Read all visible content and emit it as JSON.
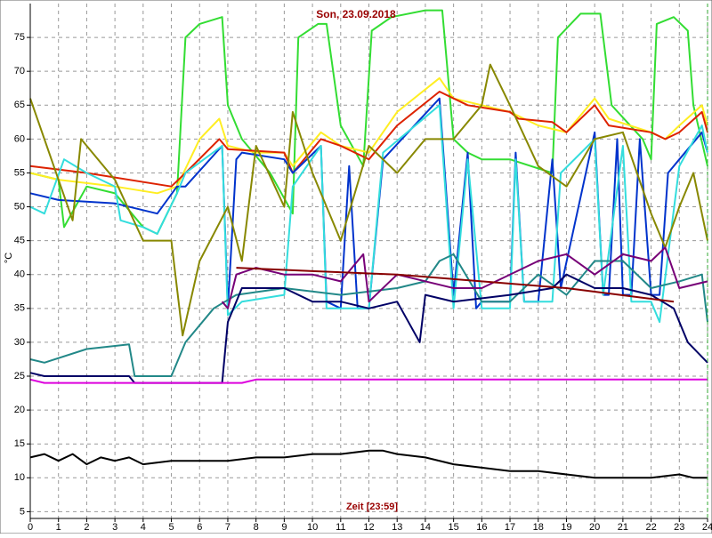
{
  "chart_data": {
    "type": "line",
    "title": "Son, 23.09.2018",
    "x_label": "Zeit [23:59]",
    "y_label": "°C",
    "xlim": [
      0,
      24
    ],
    "xticks": [
      0,
      1,
      2,
      3,
      4,
      5,
      6,
      7,
      8,
      9,
      10,
      11,
      12,
      13,
      14,
      15,
      16,
      17,
      18,
      19,
      20,
      21,
      22,
      23,
      24
    ],
    "ylim": [
      4,
      80
    ],
    "yticks": [
      5,
      10,
      15,
      20,
      25,
      30,
      35,
      40,
      45,
      50,
      55,
      60,
      65,
      70,
      75
    ],
    "grid": true,
    "series": [
      {
        "color": "#33dd33",
        "x": [
          0,
          1,
          1.2,
          2,
          3,
          4,
          4.5,
          5.2,
          5.5,
          6,
          6.8,
          7,
          7.5,
          8.5,
          9.3,
          9.5,
          10.2,
          10.5,
          11,
          11.8,
          12.1,
          12.8,
          14,
          14.6,
          15,
          15.5,
          16,
          17,
          18.5,
          18.7,
          19.5,
          20.2,
          20.6,
          21.7,
          22,
          22.2,
          22.8,
          23.3,
          23.5,
          24
        ],
        "values": [
          55,
          54,
          47,
          53,
          52,
          47,
          46,
          52,
          75,
          77,
          78,
          65,
          60,
          55,
          49,
          75,
          77,
          77,
          62,
          56,
          76,
          78,
          79,
          79,
          60,
          58,
          57,
          57,
          55,
          75,
          78.5,
          78.5,
          65,
          60,
          57,
          77,
          78,
          76,
          65,
          56
        ]
      },
      {
        "color": "#ffee22",
        "x": [
          0,
          1,
          2,
          3,
          4.5,
          5.2,
          6,
          6.7,
          7,
          8,
          9,
          9.3,
          10.3,
          11,
          12,
          13,
          14.5,
          15,
          16,
          17,
          18,
          19,
          20,
          20.5,
          22,
          22.5,
          23,
          23.8,
          24
        ],
        "values": [
          55,
          54,
          53.5,
          53,
          52,
          53,
          60,
          63,
          59,
          58,
          58,
          56,
          61,
          59,
          58,
          64,
          69,
          66,
          65,
          64,
          62,
          61,
          66,
          63,
          61,
          60,
          62,
          65,
          62
        ]
      },
      {
        "color": "#dd2200",
        "x": [
          0,
          2,
          5,
          5.5,
          6.7,
          7,
          9,
          9.3,
          10.3,
          11,
          12,
          13,
          14.5,
          15.5,
          17,
          17.3,
          18.5,
          19,
          20,
          20.5,
          22,
          22.5,
          23,
          23.8,
          24
        ],
        "values": [
          56,
          55,
          53,
          55,
          60,
          58.5,
          58,
          55,
          60,
          59,
          57,
          62,
          67,
          65,
          64,
          63,
          62.5,
          61,
          65,
          62,
          61,
          60,
          61,
          64,
          61
        ]
      },
      {
        "color": "#0033cc",
        "x": [
          0,
          1,
          3,
          4.5,
          5.2,
          5.5,
          6.8,
          7,
          7.3,
          7.5,
          9,
          9.3,
          10.3,
          10.5,
          11,
          11.3,
          11.6,
          12,
          12.5,
          14.5,
          15,
          15.5,
          15.8,
          16,
          17,
          17.2,
          17.5,
          18,
          18.5,
          18.8,
          20,
          20.3,
          20.5,
          20.8,
          21,
          21.3,
          21.6,
          22,
          22.3,
          22.6,
          23,
          23.8,
          24
        ],
        "values": [
          52,
          51,
          50.5,
          49,
          53,
          53,
          59,
          35,
          57,
          58,
          57,
          55,
          59,
          36,
          35,
          56,
          35,
          35,
          57,
          66,
          37,
          58,
          35,
          36,
          36,
          58,
          36,
          36,
          57,
          38,
          61,
          37,
          37,
          60,
          37,
          37,
          60,
          37,
          37,
          55,
          57,
          61,
          58
        ]
      },
      {
        "color": "#33dddd",
        "x": [
          0,
          0.5,
          1.2,
          2,
          3,
          3.2,
          4,
          4.5,
          5.2,
          5.5,
          6.8,
          7,
          7.5,
          9,
          9.3,
          10.3,
          10.5,
          11,
          12,
          12.5,
          14.5,
          15,
          15.5,
          16,
          17,
          17.2,
          17.5,
          18.5,
          18.8,
          20,
          20.3,
          21,
          21.3,
          22,
          22.3,
          23,
          23.8,
          24
        ],
        "values": [
          50,
          49,
          57,
          55,
          53,
          48,
          47,
          46,
          52,
          55,
          59,
          34,
          36,
          37,
          53,
          59,
          35,
          35,
          35,
          58,
          65,
          35,
          57,
          35,
          35,
          57,
          36,
          36,
          55,
          60,
          37,
          59,
          36,
          36,
          33,
          56,
          62,
          58
        ]
      },
      {
        "color": "#888800",
        "x": [
          0,
          1.5,
          1.8,
          3,
          4,
          5,
          5.4,
          6,
          7,
          7.5,
          8,
          9,
          9.3,
          10,
          11,
          12,
          13,
          14,
          15,
          16,
          16.3,
          17,
          18,
          19,
          20,
          21,
          21.5,
          22,
          22.5,
          23,
          23.5,
          24
        ],
        "values": [
          66,
          48,
          60,
          54,
          45,
          45,
          31,
          42,
          50,
          42,
          59,
          50,
          64,
          55,
          45,
          59,
          55,
          60,
          60,
          65,
          71,
          65,
          56,
          53,
          60,
          61,
          55,
          49,
          44,
          50,
          55,
          45
        ]
      },
      {
        "color": "#228888",
        "x": [
          0,
          0.5,
          2,
          3.5,
          3.7,
          5,
          5.5,
          6.5,
          7.3,
          9,
          11,
          13,
          14,
          14.5,
          15,
          16,
          17,
          18,
          19,
          20,
          21,
          22,
          23,
          23.8,
          24
        ],
        "values": [
          27.5,
          27,
          29,
          29.7,
          25,
          25,
          30,
          35,
          37,
          38,
          37,
          38,
          39,
          42,
          43,
          36,
          36,
          40,
          37,
          42,
          42,
          38,
          39,
          40,
          33
        ]
      },
      {
        "color": "#000066",
        "x": [
          0,
          0.5,
          3.5,
          3.7,
          6.8,
          7,
          7.5,
          9,
          10,
          11,
          12,
          13,
          13.8,
          14,
          15,
          17,
          18.5,
          19,
          20,
          21,
          22,
          22.8,
          23.3,
          24
        ],
        "values": [
          25.5,
          25,
          25,
          24,
          24,
          33,
          38,
          38,
          36,
          36,
          35,
          36,
          30,
          37,
          36,
          37,
          38,
          40,
          38,
          38,
          37,
          35,
          30,
          27
        ]
      },
      {
        "color": "#770077",
        "x": [
          6.8,
          7,
          7.3,
          8,
          9,
          10,
          11,
          11.8,
          12,
          13,
          15,
          16,
          18,
          19,
          20,
          21,
          22,
          22.5,
          23,
          24
        ],
        "values": [
          36,
          35,
          40,
          41,
          40,
          40,
          39,
          43,
          36,
          40,
          38,
          38,
          42,
          43,
          40,
          43,
          42,
          44,
          38,
          39
        ]
      },
      {
        "color": "#880000",
        "x": [
          7.3,
          10,
          13,
          16,
          19,
          22.8
        ],
        "values": [
          41,
          40.5,
          40,
          39,
          38,
          36
        ]
      },
      {
        "color": "#dd00dd",
        "x": [
          0,
          0.5,
          7.5,
          8,
          24
        ],
        "values": [
          24.5,
          24,
          24,
          24.5,
          24.5
        ]
      },
      {
        "color": "#000000",
        "x": [
          0,
          0.5,
          1,
          1.5,
          2,
          2.5,
          3,
          3.5,
          4,
          5,
          6,
          7,
          8,
          9,
          10,
          11,
          12,
          12.5,
          13,
          14,
          15,
          16,
          17,
          18,
          19,
          20,
          21,
          22,
          23,
          23.5,
          24
        ],
        "values": [
          13,
          13.5,
          12.5,
          13.5,
          12,
          13,
          12.5,
          13,
          12,
          12.5,
          12.5,
          12.5,
          13,
          13,
          13.5,
          13.5,
          14,
          14,
          13.5,
          13,
          12,
          11.5,
          11,
          11,
          10.5,
          10,
          10,
          10,
          10.5,
          10,
          10
        ]
      }
    ]
  }
}
